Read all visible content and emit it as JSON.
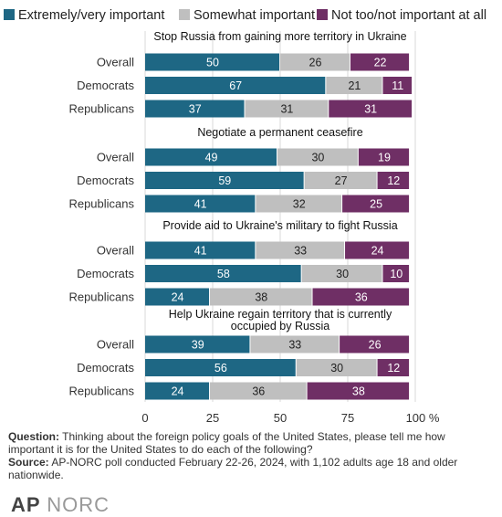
{
  "chart_data": {
    "type": "bar",
    "orientation": "horizontal",
    "stacked": true,
    "legend_position": "top",
    "colors": [
      "#1e6784",
      "#bfbfbf",
      "#6f2f65"
    ],
    "series": [
      {
        "name": "Extremely/very important"
      },
      {
        "name": "Somewhat important"
      },
      {
        "name": "Not too/not important at all"
      }
    ],
    "groups": [
      {
        "title": "Stop Russia from gaining more territory in Ukraine",
        "rows": [
          {
            "label": "Overall",
            "values": [
              50,
              26,
              22
            ]
          },
          {
            "label": "Democrats",
            "values": [
              67,
              21,
              11
            ]
          },
          {
            "label": "Republicans",
            "values": [
              37,
              31,
              31
            ]
          }
        ]
      },
      {
        "title": "Negotiate a permanent ceasefire",
        "rows": [
          {
            "label": "Overall",
            "values": [
              49,
              30,
              19
            ]
          },
          {
            "label": "Democrats",
            "values": [
              59,
              27,
              12
            ]
          },
          {
            "label": "Republicans",
            "values": [
              41,
              32,
              25
            ]
          }
        ]
      },
      {
        "title": "Provide aid to Ukraine's military to fight Russia",
        "rows": [
          {
            "label": "Overall",
            "values": [
              41,
              33,
              24
            ]
          },
          {
            "label": "Democrats",
            "values": [
              58,
              30,
              10
            ]
          },
          {
            "label": "Republicans",
            "values": [
              24,
              38,
              36
            ]
          }
        ]
      },
      {
        "title": "Help Ukraine regain territory that is currently occupied by Russia",
        "title_lines": [
          "Help Ukraine regain territory that is currently",
          "occupied by Russia"
        ],
        "rows": [
          {
            "label": "Overall",
            "values": [
              39,
              33,
              26
            ]
          },
          {
            "label": "Democrats",
            "values": [
              56,
              30,
              12
            ]
          },
          {
            "label": "Republicans",
            "values": [
              24,
              36,
              38
            ]
          }
        ]
      }
    ],
    "x_axis": {
      "range": [
        0,
        100
      ],
      "ticks": [
        0,
        25,
        50,
        75,
        100
      ],
      "tick_labels": [
        "0",
        "25",
        "50",
        "75",
        "100 %"
      ]
    }
  },
  "notes": {
    "question_label": "Question:",
    "question_text": "Thinking about the foreign policy goals of the United States, please tell me how important it is for the United States to do each of the following?",
    "source_label": "Source:",
    "source_text": "AP-NORC poll conducted February 22-26, 2024, with 1,102 adults age 18 and older nationwide."
  },
  "logo": {
    "ap": "AP",
    "norc": "NORC"
  }
}
